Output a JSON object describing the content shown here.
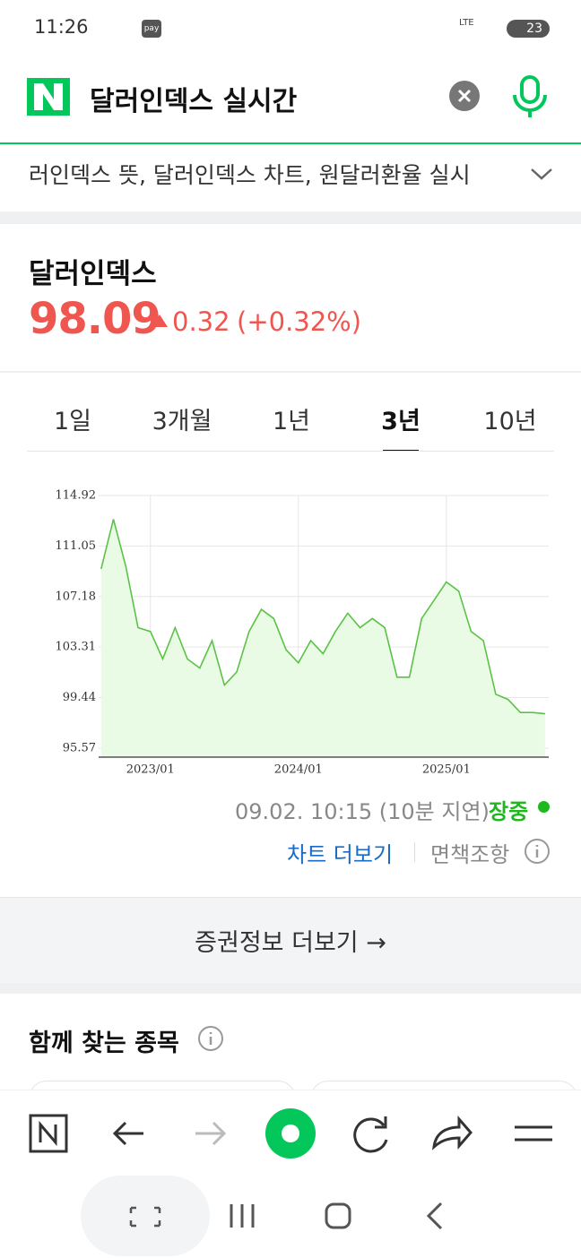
{
  "status_bar": {
    "time": "11:26",
    "pay": "pay",
    "network": "LTE",
    "battery": "23"
  },
  "search": {
    "query": "달러인덱스 실시간"
  },
  "suggestions": "러인덱스 뜻, 달러인덱스 차트, 원달러환율 실시",
  "quote": {
    "name": "달러인덱스",
    "price": "98.09",
    "change": "0.32",
    "change_pct": "(+0.32%)"
  },
  "tabs": [
    "1일",
    "3개월",
    "1년",
    "3년",
    "10년"
  ],
  "active_tab": 3,
  "chart_data": {
    "type": "area",
    "color": "#5cc247",
    "fill": "#e9fbe4",
    "x": [
      "2022/09",
      "2022/10",
      "2022/11",
      "2022/12",
      "2023/01",
      "2023/02",
      "2023/03",
      "2023/04",
      "2023/05",
      "2023/06",
      "2023/07",
      "2023/08",
      "2023/09",
      "2023/10",
      "2023/11",
      "2023/12",
      "2024/01",
      "2024/02",
      "2024/03",
      "2024/04",
      "2024/05",
      "2024/06",
      "2024/07",
      "2024/08",
      "2024/09",
      "2024/10",
      "2024/11",
      "2024/12",
      "2025/01",
      "2025/02",
      "2025/03",
      "2025/04",
      "2025/05",
      "2025/06",
      "2025/07",
      "2025/08",
      "2025/09"
    ],
    "values": [
      109.3,
      113.1,
      109.5,
      104.8,
      104.5,
      102.4,
      104.8,
      102.4,
      101.7,
      103.8,
      100.4,
      101.4,
      104.5,
      106.2,
      105.5,
      103.1,
      102.1,
      103.8,
      102.8,
      104.5,
      105.9,
      104.8,
      105.5,
      104.8,
      101.0,
      101.0,
      105.5,
      106.9,
      108.3,
      107.6,
      104.5,
      103.8,
      99.7,
      99.3,
      98.3,
      98.3,
      98.2
    ],
    "ylim": [
      94.88,
      114.92
    ],
    "yticks": [
      95.57,
      99.44,
      103.31,
      107.18,
      111.05,
      114.92
    ],
    "xticks": [
      "2023/01",
      "2024/01",
      "2025/01"
    ],
    "grid": true
  },
  "timestamp": "09.02. 10:15 (10분 지연)",
  "market_status": "장중",
  "links": {
    "more_chart": "차트 더보기",
    "disclaimer": "면책조항"
  },
  "more_securities": "증권정보 더보기 →",
  "related": {
    "title": "함께 찾는 종목"
  }
}
